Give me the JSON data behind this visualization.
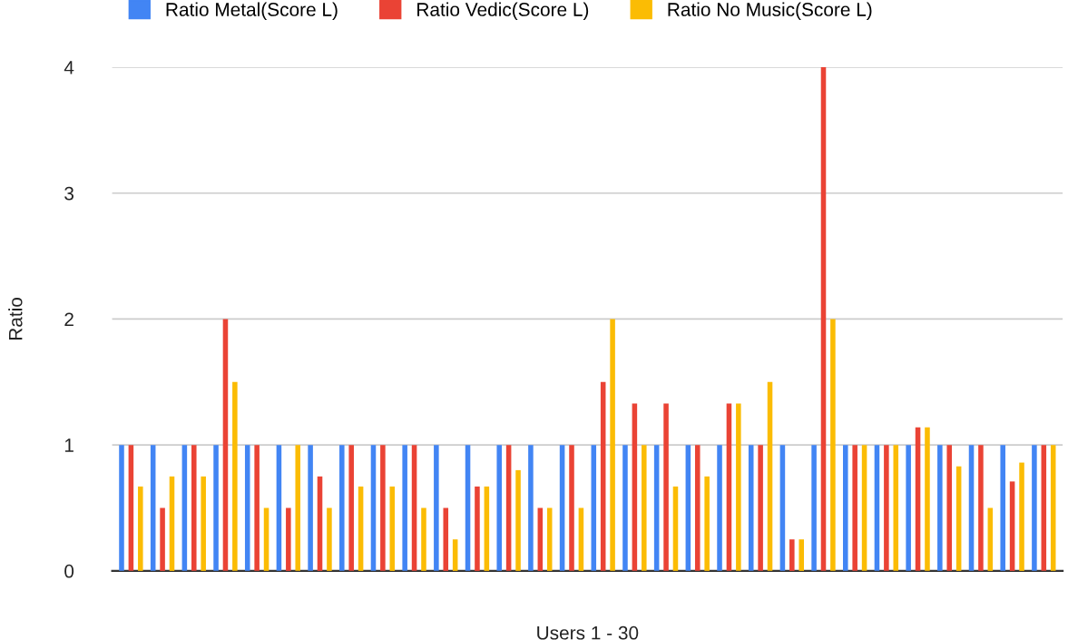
{
  "chart_data": {
    "type": "bar",
    "xlabel": "Users 1 - 30",
    "ylabel": "Ratio",
    "categories": [
      null,
      null,
      null,
      null,
      null,
      null,
      null,
      null,
      null,
      null,
      null,
      null,
      null,
      null,
      null,
      null,
      null,
      null,
      null,
      null,
      null,
      null,
      null,
      null,
      null,
      null,
      null,
      null,
      null,
      null
    ],
    "series": [
      {
        "name": "Ratio Metal(Score L)",
        "color": "#4285f4",
        "values": [
          1,
          1,
          1,
          1,
          1,
          1,
          1,
          1,
          1,
          1,
          1,
          1,
          1,
          1,
          1,
          1,
          1,
          1,
          1,
          1,
          1,
          1,
          1,
          1,
          1,
          1,
          1,
          1,
          1,
          1
        ]
      },
      {
        "name": "Ratio Vedic(Score L)",
        "color": "#ea4335",
        "values": [
          1,
          0.5,
          1,
          2,
          1,
          0.5,
          0.75,
          1,
          1,
          1,
          0.5,
          0.67,
          1,
          0.5,
          1,
          1.5,
          1.33,
          1.33,
          1,
          1.33,
          1,
          0.25,
          4,
          1,
          1,
          1.14,
          1,
          1,
          0.71,
          1
        ]
      },
      {
        "name": "Ratio No Music(Score L)",
        "color": "#fbbc04",
        "values": [
          0.67,
          0.75,
          0.75,
          1.5,
          0.5,
          1,
          0.5,
          0.67,
          0.67,
          0.5,
          0.25,
          0.67,
          0.8,
          0.5,
          0.5,
          2,
          1,
          0.67,
          0.75,
          1.33,
          1.5,
          0.25,
          2,
          1,
          1,
          1.14,
          0.83,
          0.5,
          0.86,
          1
        ]
      }
    ],
    "ylim": [
      0,
      4
    ],
    "yticks": [
      0,
      1,
      2,
      3,
      4
    ],
    "grid": "y",
    "legend": "top left"
  }
}
